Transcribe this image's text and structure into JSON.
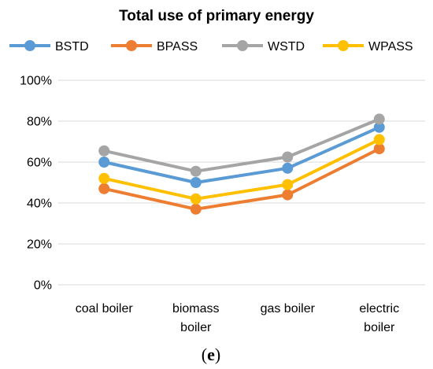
{
  "chart_data": {
    "type": "line",
    "title": "Total use of primary energy",
    "panel_label": {
      "open": "(",
      "letter": "e",
      "close": ")"
    },
    "categories": [
      [
        "coal boiler"
      ],
      [
        "biomass",
        "boiler"
      ],
      [
        "gas boiler"
      ],
      [
        "electric",
        "boiler"
      ]
    ],
    "ylim": [
      0,
      100
    ],
    "yticks": [
      0,
      20,
      40,
      60,
      80,
      100
    ],
    "ytick_labels": [
      "0%",
      "20%",
      "40%",
      "60%",
      "80%",
      "100%"
    ],
    "grid": true,
    "legend_position": "top",
    "series": [
      {
        "name": "BSTD",
        "color": "#5b9bd5",
        "values": [
          60,
          50,
          57,
          77
        ]
      },
      {
        "name": "BPASS",
        "color": "#ed7d31",
        "values": [
          47,
          37,
          44,
          66.5
        ]
      },
      {
        "name": "WSTD",
        "color": "#a5a5a5",
        "values": [
          65.5,
          55.5,
          62.5,
          81
        ]
      },
      {
        "name": "WPASS",
        "color": "#ffc000",
        "values": [
          52,
          42,
          49,
          71
        ]
      }
    ]
  }
}
